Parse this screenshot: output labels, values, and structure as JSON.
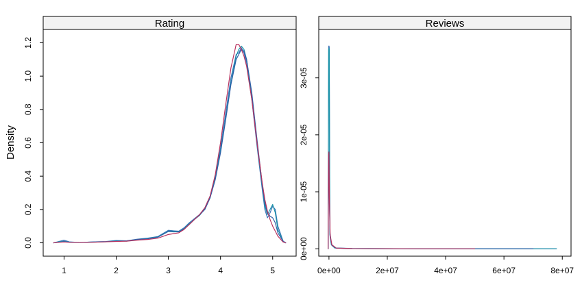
{
  "chart_data": {
    "type": "line",
    "subtype": "density",
    "ylabel": "Density",
    "series_colors": [
      "#3a73b8",
      "#1a93a8",
      "#2f5fa8",
      "#b8325f"
    ],
    "panels": [
      {
        "id": "rating",
        "strip_label": "Rating",
        "xlim": [
          0.6,
          5.45
        ],
        "ylim": [
          -0.08,
          1.28
        ],
        "xticks": [
          1,
          2,
          3,
          4,
          5
        ],
        "xtick_labels": [
          "1",
          "2",
          "3",
          "4",
          "5"
        ],
        "yticks": [
          0.0,
          0.2,
          0.4,
          0.6,
          0.8,
          1.0,
          1.2
        ],
        "ytick_labels": [
          "0.0",
          "0.2",
          "0.4",
          "0.6",
          "0.8",
          "1.0",
          "1.2"
        ],
        "series": [
          {
            "values": [
              [
                0.8,
                0.0
              ],
              [
                0.9,
                0.008
              ],
              [
                1.0,
                0.016
              ],
              [
                1.1,
                0.006
              ],
              [
                1.3,
                0.002
              ],
              [
                1.6,
                0.006
              ],
              [
                1.8,
                0.008
              ],
              [
                2.0,
                0.014
              ],
              [
                2.2,
                0.012
              ],
              [
                2.4,
                0.022
              ],
              [
                2.6,
                0.028
              ],
              [
                2.8,
                0.038
              ],
              [
                3.0,
                0.075
              ],
              [
                3.1,
                0.072
              ],
              [
                3.2,
                0.07
              ],
              [
                3.3,
                0.09
              ],
              [
                3.4,
                0.12
              ],
              [
                3.5,
                0.145
              ],
              [
                3.6,
                0.17
              ],
              [
                3.7,
                0.21
              ],
              [
                3.8,
                0.28
              ],
              [
                3.9,
                0.4
              ],
              [
                4.0,
                0.57
              ],
              [
                4.1,
                0.78
              ],
              [
                4.2,
                0.99
              ],
              [
                4.3,
                1.13
              ],
              [
                4.35,
                1.14
              ],
              [
                4.4,
                1.17
              ],
              [
                4.45,
                1.14
              ],
              [
                4.5,
                1.08
              ],
              [
                4.6,
                0.86
              ],
              [
                4.7,
                0.58
              ],
              [
                4.8,
                0.32
              ],
              [
                4.85,
                0.2
              ],
              [
                4.9,
                0.15
              ],
              [
                4.95,
                0.18
              ],
              [
                5.0,
                0.22
              ],
              [
                5.05,
                0.2
              ],
              [
                5.1,
                0.1
              ],
              [
                5.2,
                0.01
              ],
              [
                5.25,
                0.0
              ]
            ]
          },
          {
            "values": [
              [
                0.8,
                0.0
              ],
              [
                0.9,
                0.006
              ],
              [
                1.0,
                0.01
              ],
              [
                1.1,
                0.004
              ],
              [
                1.3,
                0.002
              ],
              [
                1.6,
                0.004
              ],
              [
                1.8,
                0.006
              ],
              [
                2.0,
                0.012
              ],
              [
                2.2,
                0.01
              ],
              [
                2.4,
                0.02
              ],
              [
                2.6,
                0.026
              ],
              [
                2.8,
                0.036
              ],
              [
                3.0,
                0.07
              ],
              [
                3.1,
                0.07
              ],
              [
                3.2,
                0.068
              ],
              [
                3.3,
                0.085
              ],
              [
                3.4,
                0.115
              ],
              [
                3.5,
                0.14
              ],
              [
                3.6,
                0.165
              ],
              [
                3.7,
                0.205
              ],
              [
                3.8,
                0.27
              ],
              [
                3.9,
                0.39
              ],
              [
                4.0,
                0.55
              ],
              [
                4.1,
                0.75
              ],
              [
                4.2,
                0.96
              ],
              [
                4.3,
                1.12
              ],
              [
                4.35,
                1.16
              ],
              [
                4.4,
                1.18
              ],
              [
                4.45,
                1.16
              ],
              [
                4.5,
                1.1
              ],
              [
                4.6,
                0.88
              ],
              [
                4.7,
                0.6
              ],
              [
                4.8,
                0.34
              ],
              [
                4.85,
                0.22
              ],
              [
                4.9,
                0.17
              ],
              [
                4.95,
                0.2
              ],
              [
                5.0,
                0.23
              ],
              [
                5.05,
                0.18
              ],
              [
                5.1,
                0.08
              ],
              [
                5.2,
                0.01
              ],
              [
                5.25,
                0.0
              ]
            ]
          },
          {
            "values": [
              [
                0.8,
                0.0
              ],
              [
                0.9,
                0.004
              ],
              [
                1.0,
                0.008
              ],
              [
                1.1,
                0.004
              ],
              [
                1.3,
                0.002
              ],
              [
                1.6,
                0.006
              ],
              [
                1.8,
                0.007
              ],
              [
                2.0,
                0.01
              ],
              [
                2.2,
                0.012
              ],
              [
                2.4,
                0.02
              ],
              [
                2.6,
                0.024
              ],
              [
                2.8,
                0.034
              ],
              [
                3.0,
                0.068
              ],
              [
                3.1,
                0.066
              ],
              [
                3.2,
                0.066
              ],
              [
                3.3,
                0.082
              ],
              [
                3.4,
                0.11
              ],
              [
                3.5,
                0.14
              ],
              [
                3.6,
                0.168
              ],
              [
                3.7,
                0.2
              ],
              [
                3.8,
                0.27
              ],
              [
                3.9,
                0.38
              ],
              [
                4.0,
                0.54
              ],
              [
                4.1,
                0.74
              ],
              [
                4.2,
                0.95
              ],
              [
                4.3,
                1.1
              ],
              [
                4.35,
                1.13
              ],
              [
                4.4,
                1.16
              ],
              [
                4.45,
                1.15
              ],
              [
                4.5,
                1.1
              ],
              [
                4.6,
                0.9
              ],
              [
                4.7,
                0.62
              ],
              [
                4.8,
                0.35
              ],
              [
                4.85,
                0.24
              ],
              [
                4.9,
                0.18
              ],
              [
                4.95,
                0.16
              ],
              [
                5.0,
                0.15
              ],
              [
                5.05,
                0.12
              ],
              [
                5.1,
                0.06
              ],
              [
                5.2,
                0.01
              ],
              [
                5.25,
                0.0
              ]
            ]
          },
          {
            "values": [
              [
                0.8,
                0.0
              ],
              [
                0.9,
                0.003
              ],
              [
                1.0,
                0.005
              ],
              [
                1.1,
                0.003
              ],
              [
                1.3,
                0.002
              ],
              [
                1.6,
                0.004
              ],
              [
                1.8,
                0.006
              ],
              [
                2.0,
                0.008
              ],
              [
                2.2,
                0.01
              ],
              [
                2.4,
                0.016
              ],
              [
                2.6,
                0.02
              ],
              [
                2.8,
                0.028
              ],
              [
                3.0,
                0.05
              ],
              [
                3.1,
                0.055
              ],
              [
                3.2,
                0.06
              ],
              [
                3.3,
                0.08
              ],
              [
                3.4,
                0.11
              ],
              [
                3.5,
                0.14
              ],
              [
                3.6,
                0.17
              ],
              [
                3.7,
                0.21
              ],
              [
                3.8,
                0.28
              ],
              [
                3.9,
                0.41
              ],
              [
                4.0,
                0.6
              ],
              [
                4.1,
                0.83
              ],
              [
                4.2,
                1.05
              ],
              [
                4.3,
                1.19
              ],
              [
                4.35,
                1.19
              ],
              [
                4.4,
                1.16
              ],
              [
                4.45,
                1.12
              ],
              [
                4.5,
                1.06
              ],
              [
                4.6,
                0.86
              ],
              [
                4.7,
                0.6
              ],
              [
                4.8,
                0.36
              ],
              [
                4.85,
                0.26
              ],
              [
                4.9,
                0.19
              ],
              [
                4.95,
                0.14
              ],
              [
                5.0,
                0.1
              ],
              [
                5.05,
                0.07
              ],
              [
                5.1,
                0.04
              ],
              [
                5.2,
                0.005
              ],
              [
                5.25,
                0.0
              ]
            ]
          }
        ]
      },
      {
        "id": "reviews",
        "strip_label": "Reviews",
        "xlim": [
          -3500000,
          83000000
        ],
        "ylim": [
          -1.3e-06,
          3.85e-05
        ],
        "xticks": [
          0,
          20000000,
          40000000,
          60000000,
          80000000
        ],
        "xtick_labels": [
          "0e+00",
          "2e+07",
          "4e+07",
          "6e+07",
          "8e+07"
        ],
        "yticks": [
          0,
          1e-05,
          2e-05,
          3e-05
        ],
        "ytick_labels": [
          "0e+00",
          "1e-05",
          "2e-05",
          "3e-05"
        ],
        "series": [
          {
            "values": [
              [
                -300000,
                0.0
              ],
              [
                -100000,
                3.55e-05
              ],
              [
                0,
                3.56e-05
              ],
              [
                100000,
                3.54e-05
              ],
              [
                300000,
                3e-06
              ],
              [
                800000,
                8e-07
              ],
              [
                2000000,
                1.5e-07
              ],
              [
                8000000,
                5e-08
              ],
              [
                30000000,
                0.0
              ],
              [
                78000000,
                0.0
              ]
            ]
          },
          {
            "values": [
              [
                -300000,
                0.0
              ],
              [
                -100000,
                3.5e-05
              ],
              [
                0,
                3.52e-05
              ],
              [
                100000,
                3.5e-05
              ],
              [
                300000,
                2.5e-06
              ],
              [
                800000,
                7e-07
              ],
              [
                2000000,
                1.2e-07
              ],
              [
                8000000,
                4e-08
              ],
              [
                30000000,
                0.0
              ],
              [
                78000000,
                0.0
              ]
            ]
          },
          {
            "values": [
              [
                -300000,
                0.0
              ],
              [
                -100000,
                1.65e-05
              ],
              [
                0,
                1.68e-05
              ],
              [
                150000,
                8e-06
              ],
              [
                400000,
                2e-06
              ],
              [
                1000000,
                6e-07
              ],
              [
                2500000,
                1e-07
              ],
              [
                8000000,
                3e-08
              ],
              [
                30000000,
                0.0
              ],
              [
                70000000,
                0.0
              ]
            ]
          },
          {
            "values": [
              [
                -300000,
                0.0
              ],
              [
                -100000,
                1.65e-05
              ],
              [
                0,
                1.7e-05
              ],
              [
                150000,
                9e-06
              ],
              [
                400000,
                2.5e-06
              ],
              [
                1000000,
                7e-07
              ],
              [
                2500000,
                1.2e-07
              ],
              [
                8000000,
                3e-08
              ],
              [
                30000000,
                0.0
              ],
              [
                50000000,
                0.0
              ]
            ]
          }
        ]
      }
    ]
  }
}
